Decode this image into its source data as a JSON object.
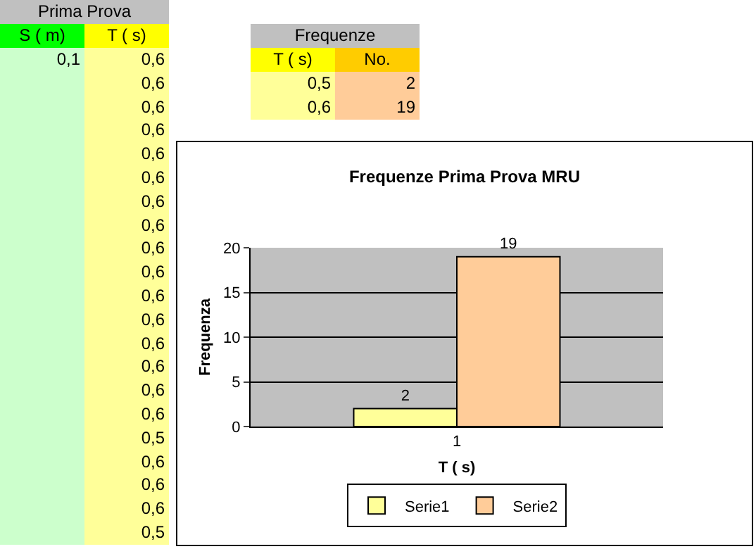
{
  "chart_data": [
    {
      "type": "other",
      "title": "Prima Prova",
      "categories": [
        "S ( m)",
        "T ( s)"
      ],
      "cell_labels": [
        [
          "0,1",
          "0,6"
        ],
        [
          null,
          "0,6"
        ],
        [
          null,
          "0,6"
        ],
        [
          null,
          "0,6"
        ],
        [
          null,
          "0,6"
        ],
        [
          null,
          "0,6"
        ],
        [
          null,
          "0,6"
        ],
        [
          null,
          "0,6"
        ],
        [
          null,
          "0,6"
        ],
        [
          null,
          "0,6"
        ],
        [
          null,
          "0,6"
        ],
        [
          null,
          "0,6"
        ],
        [
          null,
          "0,6"
        ],
        [
          null,
          "0,6"
        ],
        [
          null,
          "0,6"
        ],
        [
          null,
          "0,6"
        ],
        [
          null,
          "0,5"
        ],
        [
          null,
          "0,6"
        ],
        [
          null,
          "0,6"
        ],
        [
          null,
          "0,6"
        ],
        [
          null,
          "0,5"
        ]
      ]
    },
    {
      "type": "other",
      "title": "Frequenze",
      "categories": [
        "T ( s)",
        "No."
      ],
      "cell_labels": [
        [
          "0,5",
          "2"
        ],
        [
          "0,6",
          "19"
        ]
      ]
    },
    {
      "type": "bar",
      "title": "Frequenze Prima Prova MRU",
      "xlabel": "T ( s)",
      "ylabel": "Frequenza",
      "categories": [
        "1"
      ],
      "series": [
        {
          "name": "Serie1",
          "color": "#ffff99",
          "values": [
            2
          ]
        },
        {
          "name": "Serie2",
          "color": "#ffcc99",
          "values": [
            19
          ]
        }
      ],
      "ylim": [
        0,
        20
      ],
      "yticks": [
        0,
        5,
        10,
        15,
        20
      ],
      "grid": "y",
      "legend": "bottom",
      "data_labels": true
    }
  ]
}
